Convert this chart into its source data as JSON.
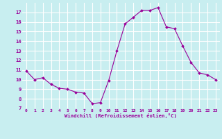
{
  "x": [
    0,
    1,
    2,
    3,
    4,
    5,
    6,
    7,
    8,
    9,
    10,
    11,
    12,
    13,
    14,
    15,
    16,
    17,
    18,
    19,
    20,
    21,
    22,
    23
  ],
  "y": [
    10.9,
    10.0,
    10.2,
    9.5,
    9.1,
    9.0,
    8.7,
    8.6,
    7.5,
    7.6,
    9.9,
    13.0,
    15.8,
    16.5,
    17.2,
    17.2,
    17.5,
    15.5,
    15.3,
    13.5,
    11.8,
    10.7,
    10.5,
    10.0
  ],
  "xlabel": "Windchill (Refroidissement éolien,°C)",
  "ylim": [
    7,
    18
  ],
  "xlim": [
    -0.5,
    23.5
  ],
  "yticks": [
    7,
    8,
    9,
    10,
    11,
    12,
    13,
    14,
    15,
    16,
    17
  ],
  "xticks": [
    0,
    1,
    2,
    3,
    4,
    5,
    6,
    7,
    8,
    9,
    10,
    11,
    12,
    13,
    14,
    15,
    16,
    17,
    18,
    19,
    20,
    21,
    22,
    23
  ],
  "line_color": "#990099",
  "marker_color": "#990099",
  "bg_color": "#c8eef0",
  "grid_color": "#ffffff",
  "label_color": "#990099",
  "tick_color": "#990099"
}
